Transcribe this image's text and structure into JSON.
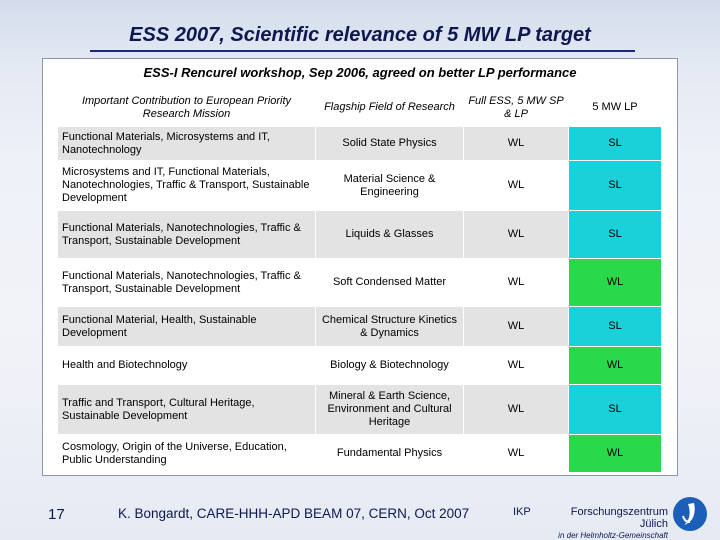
{
  "title": "ESS 2007, Scientific relevance of 5 MW LP target",
  "subtitle": "ESS-I Rencurel workshop, Sep 2006, agreed on better LP performance",
  "table": {
    "headers": {
      "mission": "Important Contribution to European Priority Research Mission",
      "field": "Flagship Field of Research",
      "full": "Full ESS, 5 MW SP & LP",
      "lp": "5 MW LP"
    },
    "rows": [
      {
        "mission": "Functional Materials, Microsystems and IT, Nanotechnology",
        "field": "Solid State Physics",
        "full": "WL",
        "lp": "SL"
      },
      {
        "mission": "Microsystems and IT, Functional Materials, Nanotechnologies, Traffic & Transport, Sustainable Development",
        "field": "Material Science & Engineering",
        "full": "WL",
        "lp": "SL"
      },
      {
        "mission": "Functional Materials, Nanotechnologies, Traffic & Transport, Sustainable Development",
        "field": "Liquids & Glasses",
        "full": "WL",
        "lp": "SL"
      },
      {
        "mission": "Functional Materials, Nanotechnologies, Traffic & Transport, Sustainable Development",
        "field": "Soft Condensed Matter",
        "full": "WL",
        "lp": "WL"
      },
      {
        "mission": "Functional Material, Health, Sustainable Development",
        "field": "Chemical Structure Kinetics & Dynamics",
        "full": "WL",
        "lp": "SL"
      },
      {
        "mission": "Health and Biotechnology",
        "field": "Biology & Biotechnology",
        "full": "WL",
        "lp": "WL"
      },
      {
        "mission": "Traffic and Transport, Cultural Heritage, Sustainable Development",
        "field": "Mineral & Earth Science, Environment and Cultural Heritage",
        "full": "WL",
        "lp": "SL"
      },
      {
        "mission": "Cosmology, Origin of the Universe, Education, Public Understanding",
        "field": "Fundamental Physics",
        "full": "WL",
        "lp": "WL"
      }
    ]
  },
  "footer": {
    "page": "17",
    "credit": "K. Bongardt, CARE-HHH-APD BEAM 07, CERN, Oct 2007",
    "ikp": "IKP",
    "institute": "Forschungszentrum Jülich",
    "association": "in der Helmholtz-Gemeinschaft"
  },
  "colors": {
    "title": "#0d1850",
    "lp_sl": "#19d1d9",
    "lp_wl": "#2ad94b",
    "row_grey": "#e3e3e3"
  }
}
